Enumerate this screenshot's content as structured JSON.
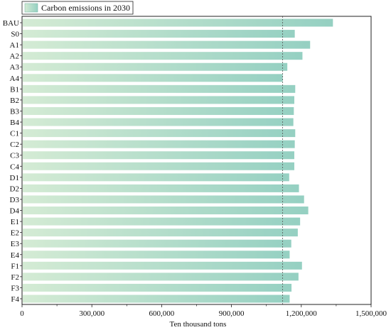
{
  "chart_data": {
    "type": "bar",
    "orientation": "horizontal",
    "legend": {
      "label": "Carbon emissions in 2030",
      "placement": "top-left"
    },
    "categories": [
      "BAU",
      "S0",
      "A1",
      "A2",
      "A3",
      "A4",
      "B1",
      "B2",
      "B3",
      "B4",
      "C1",
      "C2",
      "C3",
      "C4",
      "D1",
      "D2",
      "D3",
      "D4",
      "E1",
      "E2",
      "E3",
      "E4",
      "F1",
      "F2",
      "F3",
      "F4"
    ],
    "series": [
      {
        "name": "Carbon emissions in 2030",
        "values": [
          1336000,
          1172000,
          1238000,
          1205000,
          1140000,
          1120000,
          1174000,
          1170000,
          1168000,
          1166000,
          1174000,
          1172000,
          1170000,
          1170000,
          1148000,
          1190000,
          1212000,
          1230000,
          1195000,
          1185000,
          1157000,
          1150000,
          1203000,
          1188000,
          1158000,
          1150000
        ]
      }
    ],
    "reference_line": {
      "value": 1120000,
      "style": "dashed"
    },
    "xlabel": "Ten thousand tons",
    "xlim": [
      0,
      1500000
    ],
    "xticks": [
      0,
      300000,
      600000,
      900000,
      1200000,
      1500000
    ],
    "xtick_labels": [
      "0",
      "300,000",
      "600,000",
      "900,000",
      "1,200,000",
      "1,500,000"
    ],
    "grid": false,
    "colors": {
      "bar_start": "#d4ebd4",
      "bar_end": "#95d0c2",
      "axis": "#222222",
      "reference_line": "#555555"
    }
  }
}
